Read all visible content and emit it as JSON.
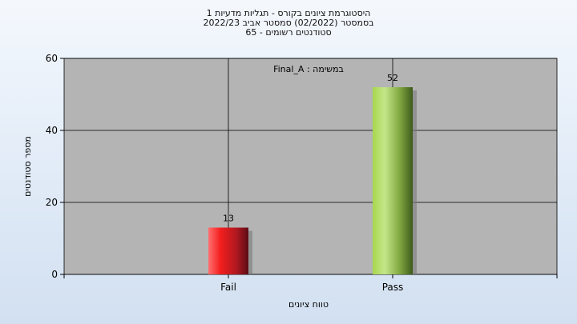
{
  "chart_data": {
    "type": "bar",
    "title_lines": [
      "היסטוגרמת ציונים בקורס - תגליות מדעיות 1",
      "בסמסטר  (02/2022)  סמסטר אביב 2022/23",
      "סטודנטים רשומים - 65"
    ],
    "annotation": "במשימה : Final_A",
    "categories": [
      "Fail",
      "Pass"
    ],
    "values": [
      13,
      52
    ],
    "data_labels": [
      "13",
      "52"
    ],
    "xlabel": "טווח ציונים",
    "ylabel": "מספר סטודנטים",
    "ylim": [
      0,
      60
    ],
    "yticks": [
      "0",
      "20",
      "40",
      "60"
    ],
    "grid": true,
    "legend": "none",
    "colors": {
      "plot_bg": "#b4b4b4",
      "fail_bar": "#e8202a",
      "pass_bar": "#9acd4a"
    }
  }
}
